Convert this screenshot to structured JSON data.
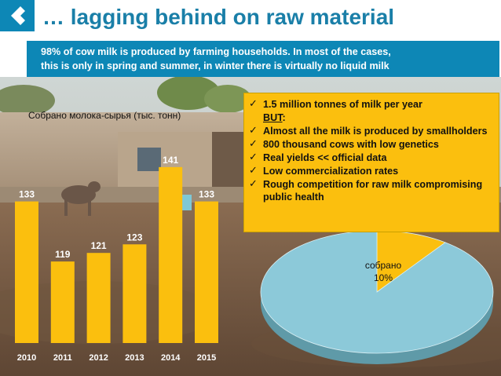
{
  "slide": {
    "title": "… lagging behind on raw material",
    "subtitle_line1": "98% of cow milk is produced by farming households. In most of the cases,",
    "subtitle_line2": "this is only in spring and summer, in winter there is virtually no liquid milk",
    "bullets": [
      {
        "text": "1.5 million tonnes of milk per year"
      },
      {
        "text": "BUT",
        "suffix": ":"
      },
      {
        "text": "Almost all the milk is produced by smallholders"
      },
      {
        "text": "800 thousand cows with low genetics"
      },
      {
        "text": "Real yields << official data"
      },
      {
        "text": "Low commercialization rates"
      },
      {
        "text": "Rough competition for raw milk compromising public health"
      }
    ],
    "check_glyph": "✓"
  },
  "colors": {
    "accent_blue": "#0d87b6",
    "title_blue": "#1a7fa8",
    "bar_yellow": "#fbbf0e",
    "pie_blue": "#8cc9d9",
    "pie_yellow": "#fbbf0e"
  },
  "chart_data": [
    {
      "type": "bar",
      "title": "Собрано молока-сырья (тыс. тонн)",
      "categories": [
        "2010",
        "2011",
        "2012",
        "2013",
        "2014",
        "2015"
      ],
      "values": [
        133,
        119,
        121,
        123,
        141,
        133
      ],
      "data_labels": [
        "133",
        "119",
        "121",
        "123",
        "141",
        "133"
      ],
      "ylim": [
        100,
        145
      ]
    },
    {
      "type": "pie",
      "slices": [
        {
          "label": "собрано",
          "value_label": "10%",
          "value": 10
        },
        {
          "label": "",
          "value": 90
        }
      ]
    }
  ]
}
